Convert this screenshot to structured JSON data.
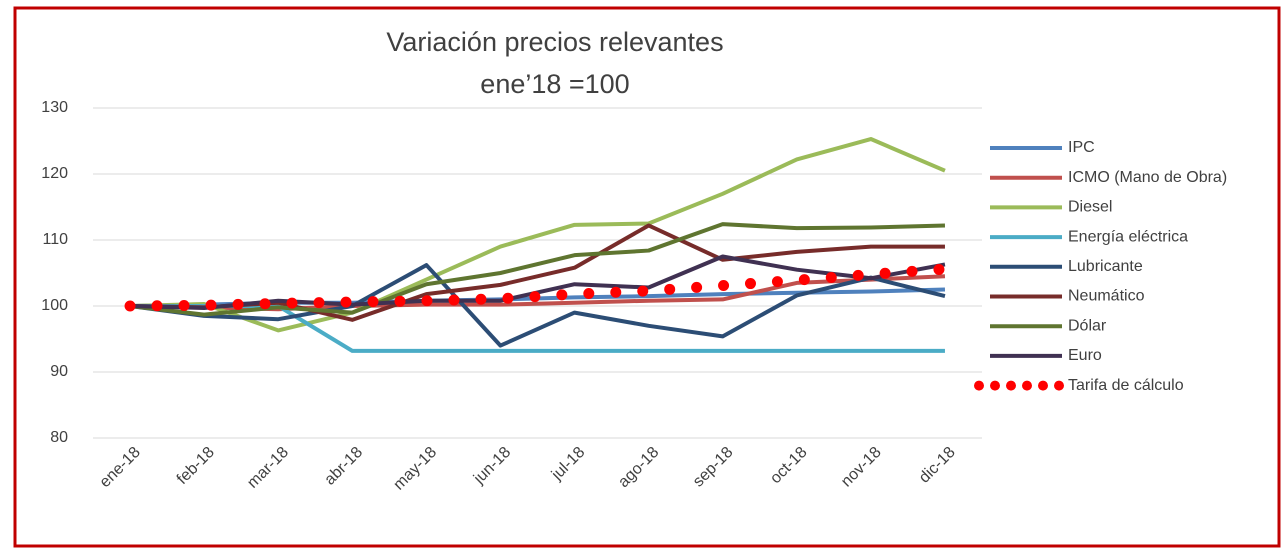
{
  "chart_data": {
    "type": "line",
    "title": "Variación precios relevantes",
    "subtitle": "ene’18 =100",
    "categories": [
      "ene-18",
      "feb-18",
      "mar-18",
      "abr-18",
      "may-18",
      "jun-18",
      "jul-18",
      "ago-18",
      "sep-18",
      "oct-18",
      "nov-18",
      "dic-18"
    ],
    "ylim": [
      80,
      130
    ],
    "yticks": [
      80,
      90,
      100,
      110,
      120,
      130
    ],
    "grid": true,
    "legend": "right",
    "series": [
      {
        "name": "IPC",
        "color": "#4f81bd",
        "values": [
          100,
          100.2,
          100.5,
          100.5,
          100.8,
          101,
          101.3,
          101.5,
          101.8,
          102,
          102.2,
          102.5
        ]
      },
      {
        "name": "ICMO (Mano de Obra)",
        "color": "#c0504d",
        "values": [
          100,
          99.8,
          99.5,
          100,
          100.2,
          100.2,
          100.5,
          100.8,
          101,
          103.5,
          104,
          104.5
        ]
      },
      {
        "name": "Diesel",
        "color": "#9bbb59",
        "values": [
          100,
          100.3,
          96.3,
          99,
          104,
          109,
          112.3,
          112.5,
          117,
          122.2,
          125.3,
          120.5
        ]
      },
      {
        "name": "Energía eléctrica",
        "color": "#4bacc6",
        "values": [
          100,
          100,
          100,
          93.2,
          93.2,
          93.2,
          93.2,
          93.2,
          93.2,
          93.2,
          93.2,
          93.2
        ]
      },
      {
        "name": "Lubricante",
        "color": "#2c4d75",
        "values": [
          100,
          98.5,
          98,
          100,
          106.2,
          94,
          99,
          97,
          95.4,
          101.6,
          104.3,
          101.5
        ]
      },
      {
        "name": "Neumático",
        "color": "#772c2a",
        "values": [
          100,
          99.8,
          100.5,
          97.9,
          101.8,
          103.2,
          105.8,
          112.2,
          107,
          108.2,
          109,
          109
        ]
      },
      {
        "name": "Dólar",
        "color": "#5f7530",
        "values": [
          100,
          98.7,
          99.8,
          99,
          103.3,
          105,
          107.7,
          108.4,
          112.4,
          111.8,
          111.9,
          112.2
        ]
      },
      {
        "name": "Euro",
        "color": "#403152",
        "values": [
          100,
          99.7,
          100.8,
          100.2,
          100.8,
          100.8,
          103.3,
          102.8,
          107.5,
          105.5,
          104.2,
          106.3
        ]
      },
      {
        "name": "Tarifa de cálculo",
        "color": "#ff0000",
        "dotted": true,
        "values": [
          100,
          100.1,
          100.4,
          100.6,
          100.8,
          101.1,
          101.8,
          102.3,
          103.1,
          103.9,
          104.8,
          105.6
        ]
      }
    ]
  }
}
